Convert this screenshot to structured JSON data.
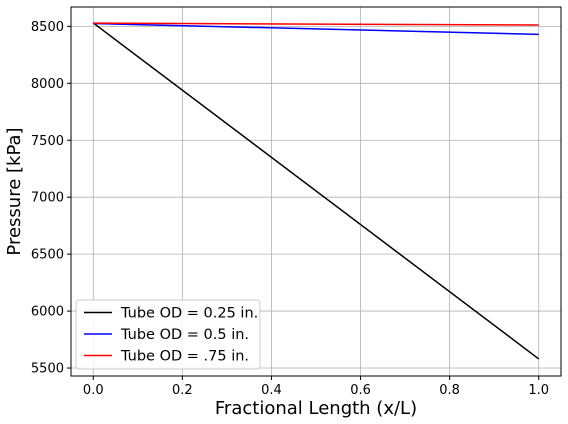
{
  "chart_data": {
    "type": "line",
    "xlabel": "Fractional Length (x/L)",
    "ylabel": "Pressure [kPa]",
    "xlim": [
      -0.05,
      1.05
    ],
    "ylim": [
      5430,
      8670
    ],
    "xticks": [
      0.0,
      0.2,
      0.4,
      0.6,
      0.8,
      1.0
    ],
    "xtick_labels": [
      "0.0",
      "0.2",
      "0.4",
      "0.6",
      "0.8",
      "1.0"
    ],
    "yticks": [
      5500,
      6000,
      6500,
      7000,
      7500,
      8000,
      8500
    ],
    "ytick_labels": [
      "5500",
      "6000",
      "6500",
      "7000",
      "7500",
      "8000",
      "8500"
    ],
    "grid": true,
    "legend_position": "lower-left",
    "series": [
      {
        "name": "Tube OD = 0.25 in.",
        "color": "#000000",
        "x": [
          0.0,
          1.0
        ],
        "y": [
          8530,
          5580
        ]
      },
      {
        "name": "Tube OD = 0.5 in.",
        "color": "#0000ff",
        "x": [
          0.0,
          1.0
        ],
        "y": [
          8525,
          8430
        ]
      },
      {
        "name": "Tube OD = .75 in.",
        "color": "#ff0000",
        "x": [
          0.0,
          1.0
        ],
        "y": [
          8528,
          8512
        ]
      }
    ]
  }
}
